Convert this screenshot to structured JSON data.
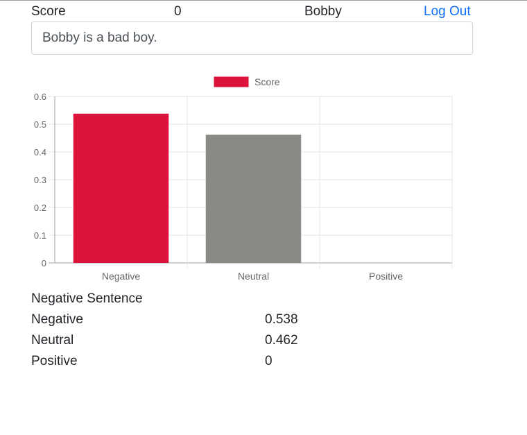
{
  "header": {
    "score_label": "Score",
    "score_value": "0",
    "username": "Bobby",
    "logout_label": "Log Out"
  },
  "input": {
    "sentence": "Bobby is a bad boy."
  },
  "chart_data": {
    "type": "bar",
    "categories": [
      "Negative",
      "Neutral",
      "Positive"
    ],
    "series": [
      {
        "name": "Score",
        "values": [
          0.538,
          0.462,
          0
        ]
      }
    ],
    "bar_colors": [
      "#dc143c",
      "#878b84",
      "#dc143c"
    ],
    "legend": {
      "label": "Score",
      "color": "#dc143c",
      "position": "top"
    },
    "ylim": [
      0,
      0.6
    ],
    "yticks": [
      "0",
      "0.1",
      "0.2",
      "0.3",
      "0.4",
      "0.5",
      "0.6"
    ],
    "ytick_values": [
      0,
      0.1,
      0.2,
      0.3,
      0.4,
      0.5,
      0.6
    ],
    "grid": true
  },
  "result": {
    "title": "Negative Sentence",
    "rows": [
      {
        "label": "Negative",
        "value": "0.538"
      },
      {
        "label": "Neutral",
        "value": "0.462"
      },
      {
        "label": "Positive",
        "value": "0"
      }
    ]
  }
}
